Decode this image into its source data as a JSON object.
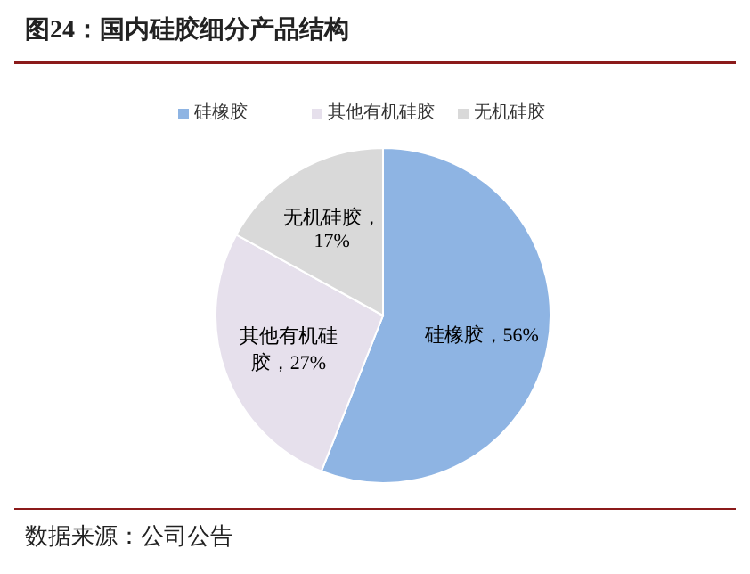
{
  "chart_data": {
    "type": "pie",
    "title": "图24：国内硅胶细分产品结构",
    "categories": [
      "硅橡胶",
      "其他有机硅胶",
      "无机硅胶"
    ],
    "values": [
      56,
      27,
      17
    ],
    "colors": [
      "#8eb4e3",
      "#e6e0ec",
      "#d9d9d9"
    ],
    "value_labels": [
      "硅橡胶，56%",
      "其他有机硅胶，27%",
      "无机硅胶，17%"
    ],
    "legend": "top",
    "annotations": [
      "数据来源：公司公告"
    ]
  }
}
